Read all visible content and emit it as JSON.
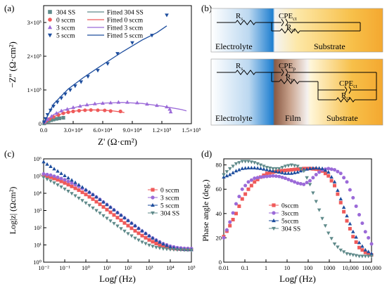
{
  "colors": {
    "ss304": "#5f8a8a",
    "s0": "#ef5a5a",
    "s3": "#9b6ad8",
    "s5": "#1e4e9e",
    "axis": "#000000"
  },
  "panel_labels": {
    "a": "(a)",
    "b": "(b)",
    "c": "(c)",
    "d": "(d)"
  },
  "chart_data": [
    {
      "type": "scatter",
      "id": "a",
      "xlabel_main": "Z'",
      "xlabel_unit": "(Ω·cm²)",
      "ylabel_main": "−Z''",
      "ylabel_unit": "(Ω·cm²)",
      "xlim": [
        0,
        150000
      ],
      "ylim": [
        0,
        350000
      ],
      "xticks": [
        0,
        30000,
        60000,
        90000,
        120000,
        150000
      ],
      "xtick_labels": [
        "0.0",
        "3.0×10⁴",
        "6.0×10⁴",
        "9.0×10⁴",
        "1.2×10⁵",
        "1.5×10⁵"
      ],
      "yticks": [
        0,
        100000,
        200000,
        300000
      ],
      "ytick_labels": [
        "0",
        "1×10⁵",
        "2×10⁵",
        "3×10⁵"
      ],
      "legend_placement": "top-left",
      "legend_points": [
        "304 SS",
        "0 sccm",
        "3 sccm",
        "5 sccm"
      ],
      "legend_lines": [
        "Fitted 304 SS",
        "Fitted 0 sccm",
        "Fitted 3 sccm",
        "Fitted 5 sccm"
      ],
      "series": [
        {
          "name": "304 SS",
          "marker": "square",
          "color": "ss304",
          "points": [
            [
              500,
              1000
            ],
            [
              1500,
              3000
            ],
            [
              3000,
              5500
            ],
            [
              5000,
              8000
            ],
            [
              7500,
              10500
            ],
            [
              10000,
              12500
            ],
            [
              13000,
              14500
            ],
            [
              16000,
              16000
            ],
            [
              20000,
              17500
            ]
          ],
          "fit": [
            [
              0,
              0
            ],
            [
              5000,
              8000
            ],
            [
              10000,
              12500
            ],
            [
              15000,
              15500
            ],
            [
              20000,
              17500
            ]
          ]
        },
        {
          "name": "0 sccm",
          "marker": "circle",
          "color": "s0",
          "points": [
            [
              1000,
              4000
            ],
            [
              3000,
              9000
            ],
            [
              6000,
              14000
            ],
            [
              10000,
              20000
            ],
            [
              15000,
              26000
            ],
            [
              20000,
              31000
            ],
            [
              25000,
              34000
            ],
            [
              30000,
              36500
            ],
            [
              36000,
              38500
            ],
            [
              42000,
              40000
            ],
            [
              48000,
              40500
            ],
            [
              55000,
              40000
            ],
            [
              62000,
              39500
            ],
            [
              68000,
              37500
            ],
            [
              78000,
              36500
            ]
          ],
          "fit": [
            [
              0,
              0
            ],
            [
              10000,
              21000
            ],
            [
              20000,
              31000
            ],
            [
              30000,
              37000
            ],
            [
              40000,
              40000
            ],
            [
              50000,
              41000
            ],
            [
              60000,
              40000
            ],
            [
              70000,
              38000
            ],
            [
              78000,
              35000
            ],
            [
              82000,
              33000
            ]
          ]
        },
        {
          "name": "3 sccm",
          "marker": "triangle-up",
          "color": "s3",
          "points": [
            [
              1000,
              5000
            ],
            [
              4000,
              13000
            ],
            [
              8000,
              22000
            ],
            [
              13000,
              31000
            ],
            [
              18000,
              38000
            ],
            [
              24000,
              43000
            ],
            [
              30000,
              48000
            ],
            [
              37000,
              52000
            ],
            [
              44000,
              56000
            ],
            [
              52000,
              59000
            ],
            [
              60000,
              60500
            ],
            [
              68000,
              62000
            ],
            [
              76000,
              63500
            ],
            [
              85000,
              63500
            ],
            [
              95000,
              62000
            ],
            [
              105000,
              58000
            ],
            [
              115000,
              54000
            ],
            [
              125000,
              50000
            ],
            [
              128000,
              43000
            ],
            [
              129000,
              35000
            ]
          ],
          "fit": [
            [
              0,
              0
            ],
            [
              10000,
              27000
            ],
            [
              20000,
              40000
            ],
            [
              40000,
              54000
            ],
            [
              60000,
              61000
            ],
            [
              80000,
              63000
            ],
            [
              100000,
              60000
            ],
            [
              120000,
              52000
            ],
            [
              140000,
              42000
            ],
            [
              145000,
              38000
            ]
          ]
        },
        {
          "name": "5 sccm",
          "marker": "triangle-down",
          "color": "s5",
          "points": [
            [
              500,
              5000
            ],
            [
              2000,
              15000
            ],
            [
              4000,
              27000
            ],
            [
              7000,
              40000
            ],
            [
              10000,
              52000
            ],
            [
              14000,
              64000
            ],
            [
              18000,
              76000
            ],
            [
              22000,
              88000
            ],
            [
              27000,
              100000
            ],
            [
              32000,
              112000
            ],
            [
              38000,
              124000
            ],
            [
              45000,
              140000
            ],
            [
              55000,
              158000
            ],
            [
              65000,
              178000
            ],
            [
              75000,
              208000
            ],
            [
              90000,
              240000
            ],
            [
              110000,
              262000
            ],
            [
              125000,
              322000
            ]
          ],
          "fit": [
            [
              0,
              0
            ],
            [
              10000,
              58000
            ],
            [
              25000,
              103000
            ],
            [
              40000,
              136000
            ],
            [
              60000,
              175000
            ],
            [
              80000,
              213000
            ],
            [
              100000,
              248000
            ],
            [
              115000,
              270000
            ],
            [
              125000,
              290000
            ]
          ]
        }
      ]
    },
    {
      "type": "diagram",
      "id": "b",
      "top": {
        "r1": "R",
        "r1_sub": "s",
        "cpe": "CPE",
        "cpe_sub": "ct",
        "r2": "R",
        "r2_sub": "ct",
        "labels": [
          "Electrolyte",
          "Substrate"
        ]
      },
      "bottom": {
        "r1": "R",
        "r1_sub": "s",
        "cpe1": "CPE",
        "cpe1_sub": "p",
        "r2": "R",
        "r2_sub": "p",
        "cpe2": "CPE",
        "cpe2_sub": "ct",
        "r3": "R",
        "r3_sub": "ct",
        "labels": [
          "Electrolyte",
          "Film",
          "Substrate"
        ]
      }
    },
    {
      "type": "scatter",
      "id": "c",
      "xlabel": "Log",
      "xlabel_italic": "f",
      "xlabel_unit": "(Hz)",
      "ylabel": "Log|z| (Ωcm²)",
      "xlim_log": [
        -2,
        5
      ],
      "ylim_log": [
        0,
        6
      ],
      "x_scale": "log",
      "y_scale": "log",
      "xtick_labels": [
        "10⁻²",
        "10⁻¹",
        "10⁰",
        "10¹",
        "10²",
        "10³",
        "10⁴",
        "10⁵"
      ],
      "ytick_labels": [
        "10⁰",
        "10¹",
        "10²",
        "10³",
        "10⁴",
        "10⁵",
        "10⁶"
      ],
      "legend_placement": "right",
      "legend": [
        "0 sccm",
        "3 sccm",
        "5 sccm",
        "304 SS"
      ],
      "series": [
        {
          "name": "0 sccm",
          "color": "s0",
          "marker": "square",
          "log_y": [
            5.05,
            4.93,
            4.78,
            4.6,
            4.4,
            4.18,
            3.93,
            3.66,
            3.36,
            3.05,
            2.74,
            2.43,
            2.12,
            1.82,
            1.54,
            1.29,
            1.08,
            0.92,
            0.82,
            0.77,
            0.75,
            0.74
          ]
        },
        {
          "name": "3 sccm",
          "color": "s3",
          "marker": "circle",
          "log_y": [
            5.12,
            5.05,
            4.93,
            4.78,
            4.6,
            4.4,
            4.17,
            3.92,
            3.64,
            3.34,
            3.03,
            2.72,
            2.41,
            2.1,
            1.8,
            1.52,
            1.28,
            1.07,
            0.93,
            0.84,
            0.8,
            0.79
          ]
        },
        {
          "name": "5 sccm",
          "color": "s5",
          "marker": "triangle-up",
          "log_y": [
            5.82,
            5.55,
            5.28,
            5.02,
            4.76,
            4.49,
            4.21,
            3.93,
            3.64,
            3.34,
            3.04,
            2.73,
            2.42,
            2.12,
            1.82,
            1.53,
            1.27,
            1.05,
            0.88,
            0.78,
            0.73,
            0.72
          ]
        },
        {
          "name": "304 SS",
          "color": "ss304",
          "marker": "triangle-down",
          "log_y": [
            4.92,
            4.72,
            4.49,
            4.25,
            3.99,
            3.72,
            3.44,
            3.15,
            2.85,
            2.55,
            2.25,
            1.95,
            1.66,
            1.4,
            1.17,
            0.99,
            0.86,
            0.78,
            0.74,
            0.72,
            0.71,
            0.7
          ]
        }
      ]
    },
    {
      "type": "scatter",
      "id": "d",
      "xlabel": "Log",
      "xlabel_italic": "f",
      "xlabel_unit": "(Hz)",
      "ylabel": "Phase angle (deg.)",
      "xlim_log": [
        -2,
        5
      ],
      "ylim": [
        0,
        85
      ],
      "x_scale": "log",
      "xtick_labels": [
        "0.01",
        "0.1",
        "1",
        "10",
        "100",
        "1000",
        "10,000",
        "100,000"
      ],
      "yticks": [
        0,
        20,
        40,
        60,
        80
      ],
      "legend_placement": "center",
      "legend": [
        "0sccm",
        "3sccm",
        "5sccm",
        "304 SS"
      ],
      "series": [
        {
          "name": "0sccm",
          "color": "s0",
          "marker": "square",
          "y": [
            21,
            30,
            40,
            52,
            60,
            66,
            70,
            73,
            74,
            75,
            75.5,
            76,
            76.5,
            77,
            77,
            76.5,
            75,
            71,
            63,
            49,
            34,
            21,
            12,
            8,
            6
          ]
        },
        {
          "name": "3sccm",
          "color": "s3",
          "marker": "circle",
          "y": [
            20,
            33,
            48,
            60,
            66,
            69,
            70,
            70.5,
            71,
            70.5,
            69,
            67,
            65,
            64,
            67,
            72,
            76,
            77,
            76,
            73,
            66,
            53,
            39,
            25,
            15
          ]
        },
        {
          "name": "5sccm",
          "color": "s5",
          "marker": "triangle-up",
          "y": [
            70,
            72,
            75,
            77,
            77.5,
            77.5,
            77,
            76,
            75,
            74,
            73,
            73,
            74,
            76,
            77,
            77.5,
            77,
            74,
            66,
            52,
            38,
            25,
            16,
            10,
            7
          ]
        },
        {
          "name": "304 SS",
          "color": "ss304",
          "marker": "triangle-down",
          "y": [
            72,
            77,
            81,
            83,
            83,
            82,
            80,
            78,
            77,
            77,
            79,
            80,
            79,
            75,
            64,
            50,
            36,
            24,
            15,
            10,
            7,
            6,
            5,
            5,
            5
          ]
        }
      ]
    }
  ]
}
